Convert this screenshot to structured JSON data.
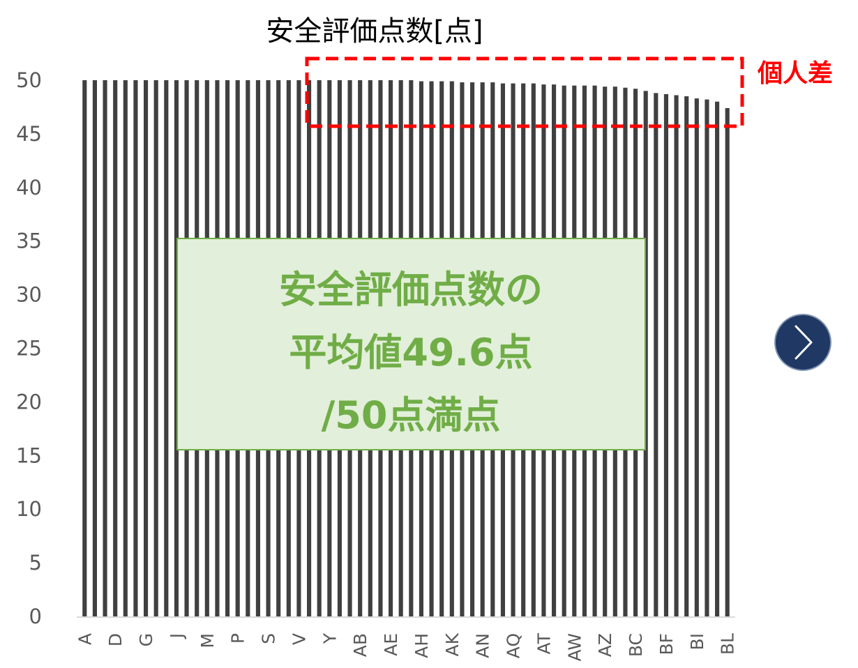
{
  "chart_data": {
    "type": "bar",
    "title": "安全評価点数[点]",
    "ylim": [
      0,
      50
    ],
    "yticks": [
      0,
      5,
      10,
      15,
      20,
      25,
      30,
      35,
      40,
      45,
      50
    ],
    "grid": false,
    "legend": "none",
    "bar_color": "#404040",
    "categories": [
      "A",
      "B",
      "C",
      "D",
      "E",
      "F",
      "G",
      "H",
      "I",
      "J",
      "K",
      "L",
      "M",
      "N",
      "O",
      "P",
      "Q",
      "R",
      "S",
      "T",
      "U",
      "V",
      "W",
      "X",
      "Y",
      "Z",
      "AA",
      "AB",
      "AC",
      "AD",
      "AE",
      "AF",
      "AG",
      "AH",
      "AI",
      "AJ",
      "AK",
      "AL",
      "AM",
      "AN",
      "AO",
      "AP",
      "AQ",
      "AR",
      "AS",
      "AT",
      "AU",
      "AV",
      "AW",
      "AX",
      "AY",
      "AZ",
      "BA",
      "BB",
      "BC",
      "BD",
      "BE",
      "BF",
      "BG",
      "BH",
      "BI",
      "BJ",
      "BK",
      "BL"
    ],
    "visible_xtick_labels": [
      "A",
      "D",
      "G",
      "J",
      "M",
      "P",
      "S",
      "V",
      "Y",
      "AB",
      "AE",
      "AH",
      "AK",
      "AN",
      "AQ",
      "AT",
      "AW",
      "AZ",
      "BC",
      "BF",
      "BI",
      "BL"
    ],
    "values": [
      50,
      50,
      50,
      50,
      50,
      50,
      50,
      50,
      50,
      50,
      50,
      50,
      50,
      50,
      50,
      50,
      50,
      50,
      50,
      50,
      50,
      50,
      50,
      50,
      50,
      50,
      50,
      50,
      50,
      50,
      50,
      50,
      50,
      49.9,
      49.9,
      49.9,
      49.9,
      49.8,
      49.8,
      49.8,
      49.8,
      49.7,
      49.7,
      49.7,
      49.7,
      49.6,
      49.6,
      49.5,
      49.5,
      49.5,
      49.5,
      49.4,
      49.4,
      49.3,
      49.2,
      49.0,
      48.8,
      48.7,
      48.6,
      48.5,
      48.3,
      48.2,
      48.0,
      47.4
    ],
    "annotations": {
      "highlight_label": "個人差",
      "summary_lines": [
        "安全評価点数の",
        "平均値49.6点",
        "/50点満点"
      ]
    }
  },
  "colors": {
    "highlight": "#ff0000",
    "summary_fill": "#e2efda",
    "summary_border": "#70ad47",
    "summary_text": "#70ad47",
    "nav_button": "#1f3864"
  },
  "nav": {
    "icon": "chevron-right-icon"
  }
}
